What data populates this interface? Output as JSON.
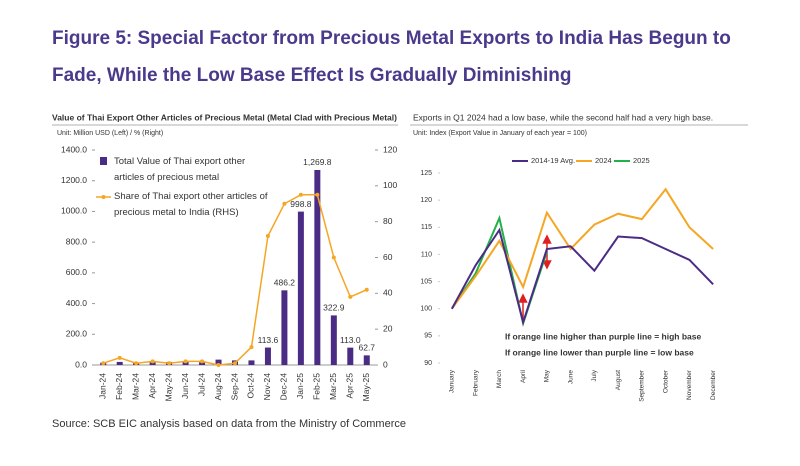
{
  "figure_title_line1": "Figure 5: Special Factor from Precious Metal Exports to India Has Begun to",
  "figure_title_line2": "Fade, While the Low Base Effect Is Gradually Diminishing",
  "source": "Source: SCB EIC analysis based on data from the Ministry of Commerce",
  "chart_data": [
    {
      "type": "bar_line",
      "title": "Value of Thai Export Other Articles of Precious Metal (Metal Clad with Precious Metal)",
      "subtitle": "Unit: Million USD (Left) / % (Right)",
      "categories": [
        "Jan-24",
        "Feb-24",
        "Mar-24",
        "Apr-24",
        "May-24",
        "Jun-24",
        "Jul-24",
        "Aug-24",
        "Sep-24",
        "Oct-24",
        "Nov-24",
        "Dec-24",
        "Jan-25",
        "Feb-25",
        "Mar-25",
        "Apr-25",
        "May-25"
      ],
      "series": [
        {
          "name": "Total Value of Thai export other articles of precious metal",
          "color": "#4b2c84",
          "kind": "bar",
          "values": [
            15,
            20,
            15,
            18,
            20,
            22,
            18,
            35,
            30,
            30,
            113.6,
            486.2,
            998.8,
            1269.8,
            322.9,
            113.0,
            62.7
          ],
          "value_labels": [
            null,
            null,
            null,
            null,
            null,
            null,
            null,
            null,
            null,
            null,
            "113.6",
            "486.2",
            "998.8",
            "1,269.8",
            "322.9",
            "113.0",
            "62.7"
          ]
        },
        {
          "name": "Share of Thai export other articles of precious metal to India (RHS)",
          "color": "#f5a623",
          "kind": "line",
          "axis": "y2",
          "values": [
            1,
            4,
            1,
            2,
            1,
            2,
            2,
            0,
            1,
            10,
            72,
            90,
            95,
            95,
            60,
            38,
            42
          ]
        }
      ],
      "ylim": [
        0,
        1400
      ],
      "yticks": [
        {
          "value": 0,
          "label": "0.0"
        },
        {
          "value": 200,
          "label": "200.0"
        },
        {
          "value": 400,
          "label": "400.0"
        },
        {
          "value": 600,
          "label": "600.0"
        },
        {
          "value": 800,
          "label": "800.0"
        },
        {
          "value": 1000,
          "label": "1000.0"
        },
        {
          "value": 1200,
          "label": "1200.0"
        },
        {
          "value": 1400,
          "label": "1400.0"
        }
      ],
      "y2lim": [
        0,
        120
      ],
      "y2ticks": [
        0,
        20,
        40,
        60,
        80,
        100,
        120
      ],
      "grid": false
    },
    {
      "type": "line",
      "title": "Exports in Q1 2024 had a low base, while the second half had a very high base.",
      "subtitle": "Unit: Index (Export Value in January of each year = 100)",
      "categories": [
        "January",
        "February",
        "March",
        "April",
        "May",
        "June",
        "July",
        "August",
        "September",
        "October",
        "November",
        "December"
      ],
      "series": [
        {
          "name": "2014-19 Avg.",
          "color": "#4b2c84",
          "values": [
            100,
            108,
            114.5,
            97.5,
            111,
            111.5,
            107,
            113.3,
            113,
            111,
            109,
            104.5
          ]
        },
        {
          "name": "2024",
          "color": "#f5a623",
          "values": [
            100,
            106,
            112.5,
            104,
            117.7,
            111,
            115.5,
            117.5,
            116.5,
            122,
            115,
            111
          ]
        },
        {
          "name": "2025",
          "color": "#22b04b",
          "values": [
            100,
            106.5,
            116.7,
            97.3,
            110.5,
            null,
            null,
            null,
            null,
            null,
            null,
            null
          ]
        }
      ],
      "ylim": [
        90,
        125
      ],
      "yticks": [
        90,
        95,
        100,
        105,
        110,
        115,
        120,
        125
      ],
      "annotations": [
        "If orange line higher than purple line = high base",
        "If orange line lower than purple line = low base"
      ],
      "grid": false
    }
  ]
}
